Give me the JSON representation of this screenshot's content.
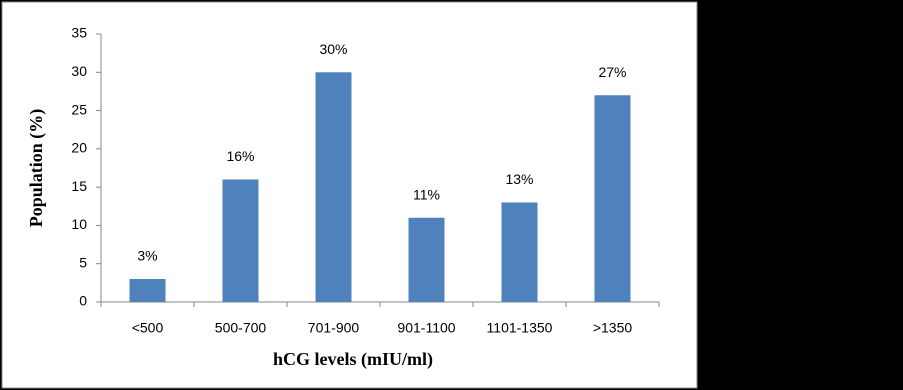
{
  "chart_data": {
    "type": "bar",
    "x_label": "hCG levels (mIU/ml)",
    "y_label": "Population (%)",
    "categories": [
      "<500",
      "500-700",
      "701-900",
      "901-1100",
      "1101-1350",
      ">1350"
    ],
    "values": [
      3,
      16,
      30,
      11,
      13,
      27
    ],
    "value_labels": [
      "3%",
      "16%",
      "30%",
      "11%",
      "13%",
      "27%"
    ],
    "color": "#4f81bd",
    "ylim": [
      0,
      35
    ],
    "yticks": [
      0,
      5,
      10,
      15,
      20,
      25,
      30,
      35
    ],
    "grid": false
  }
}
